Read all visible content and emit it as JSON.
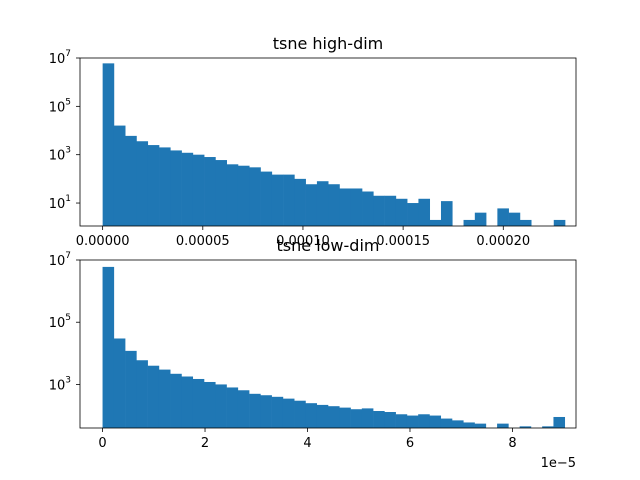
{
  "chart_data": [
    {
      "type": "bar",
      "title": "tsne high-dim",
      "xlabel": "",
      "ylabel": "",
      "y_scale": "log",
      "color": "#1f77b4",
      "xlim": [
        -1.13e-05,
        0.0002363
      ],
      "ylim_log10": [
        0.05,
        7.0
      ],
      "x_ticks": [
        {
          "value": 0.0,
          "label": "0.00000"
        },
        {
          "value": 5e-05,
          "label": "0.00005"
        },
        {
          "value": 0.0001,
          "label": "0.00010"
        },
        {
          "value": 0.00015,
          "label": "0.00015"
        },
        {
          "value": 0.0002,
          "label": "0.00020"
        }
      ],
      "y_ticks": [
        {
          "value": 10,
          "base": "10",
          "exp": "1"
        },
        {
          "value": 1000,
          "base": "10",
          "exp": "3"
        },
        {
          "value": 100000,
          "base": "10",
          "exp": "5"
        },
        {
          "value": 10000000,
          "base": "10",
          "exp": "7"
        }
      ],
      "bin_start": 0.0,
      "bin_width": 5.63e-06,
      "counts": [
        6000000,
        16000,
        6000,
        3600,
        2500,
        2000,
        1500,
        1200,
        1000,
        800,
        600,
        400,
        350,
        300,
        200,
        150,
        150,
        100,
        60,
        80,
        60,
        40,
        40,
        30,
        20,
        20,
        15,
        10,
        15,
        2,
        12,
        0,
        2,
        4,
        0,
        6,
        4,
        2,
        0,
        0,
        2
      ]
    },
    {
      "type": "bar",
      "title": "tsne low-dim",
      "xlabel": "",
      "ylabel": "",
      "y_scale": "log",
      "color": "#1f77b4",
      "xlim": [
        -4.4e-06,
        9.24e-05
      ],
      "ylim_log10": [
        1.6,
        7.0
      ],
      "x_offset_label": "1e−5",
      "x_ticks": [
        {
          "value": 0.0,
          "label": "0"
        },
        {
          "value": 2e-05,
          "label": "2"
        },
        {
          "value": 4e-05,
          "label": "4"
        },
        {
          "value": 6e-05,
          "label": "6"
        },
        {
          "value": 8e-05,
          "label": "8"
        }
      ],
      "y_ticks": [
        {
          "value": 1000,
          "base": "10",
          "exp": "3"
        },
        {
          "value": 100000,
          "base": "10",
          "exp": "5"
        },
        {
          "value": 10000000,
          "base": "10",
          "exp": "7"
        }
      ],
      "bin_start": 0.0,
      "bin_width": 2.2e-06,
      "counts": [
        6000000,
        30000,
        12000,
        6000,
        4000,
        3000,
        2200,
        1800,
        1500,
        1200,
        1000,
        800,
        650,
        500,
        450,
        400,
        350,
        300,
        250,
        220,
        200,
        180,
        160,
        170,
        140,
        130,
        110,
        100,
        110,
        100,
        80,
        70,
        60,
        55,
        40,
        55,
        40,
        45,
        30,
        45,
        90
      ]
    }
  ]
}
